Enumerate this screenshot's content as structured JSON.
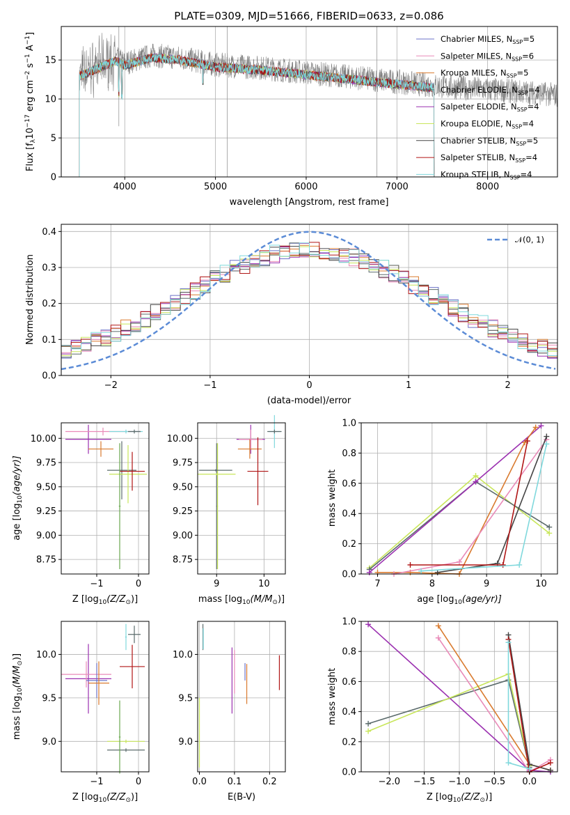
{
  "colors": {
    "chabrier_miles": "#6b72c8",
    "salpeter_miles": "#e98ab8",
    "kroupa_miles": "#d97a2e",
    "chabrier_elodie": "#5b6b6b",
    "salpeter_elodie": "#9b30b0",
    "kroupa_elodie": "#c8e65a",
    "chabrier_stelib": "#444444",
    "salpeter_stelib": "#b01515",
    "kroupa_stelib": "#7fd8dc",
    "normal": "#5b8bd6",
    "green": "#6aa84f",
    "grey_spec": "#808080"
  },
  "chart_data": [
    {
      "id": "spectrum",
      "type": "line",
      "title": "PLATE=0309, MJD=51666, FIBERID=0633, z=0.086",
      "xlabel": "wavelength [Angstrom, rest frame]",
      "ylabel_main": "Flux [f",
      "ylabel_sub": "λ",
      "ylabel_rest": "10",
      "ylabel_e1": "−17",
      "ylabel_r2": " erg cm",
      "ylabel_e2": "−2",
      "ylabel_r3": " s",
      "ylabel_e3": "−1",
      "ylabel_r4": " A",
      "ylabel_e4": "−1",
      "ylabel_end": "]",
      "xlim": [
        3300,
        8770
      ],
      "ylim": [
        0,
        19.3
      ],
      "xticks": [
        4000,
        5000,
        6000,
        7000,
        8000
      ],
      "yticks": [
        0,
        5,
        10,
        15
      ],
      "legend_position": "top-right",
      "legend": [
        {
          "text": "Chabrier MILES, N",
          "sub": "SSP",
          "tail": "=5",
          "color_key": "chabrier_miles"
        },
        {
          "text": "Salpeter MILES, N",
          "sub": "SSP",
          "tail": "=6",
          "color_key": "salpeter_miles"
        },
        {
          "text": "Kroupa MILES, N",
          "sub": "SSP",
          "tail": "=5",
          "color_key": "kroupa_miles"
        },
        {
          "text": "Chabrier ELODIE, N",
          "sub": "SSP",
          "tail": "=4",
          "color_key": "chabrier_elodie"
        },
        {
          "text": "Salpeter ELODIE, N",
          "sub": "SSP",
          "tail": "=4",
          "color_key": "salpeter_elodie"
        },
        {
          "text": "Kroupa ELODIE, N",
          "sub": "SSP",
          "tail": "=4",
          "color_key": "kroupa_elodie"
        },
        {
          "text": "Chabrier STELIB, N",
          "sub": "SSP",
          "tail": "=5",
          "color_key": "chabrier_stelib"
        },
        {
          "text": "Salpeter STELIB, N",
          "sub": "SSP",
          "tail": "=4",
          "color_key": "salpeter_stelib"
        },
        {
          "text": "Kroupa STELIB, N",
          "sub": "SSP",
          "tail": "=4",
          "color_key": "kroupa_stelib"
        }
      ],
      "data_continuum": [
        [
          3500,
          13.2
        ],
        [
          3700,
          14.2
        ],
        [
          3900,
          15.2
        ],
        [
          4000,
          14.6
        ],
        [
          4300,
          15.6
        ],
        [
          4600,
          15.3
        ],
        [
          5000,
          14.4
        ],
        [
          5500,
          14.0
        ],
        [
          6000,
          13.4
        ],
        [
          6500,
          12.8
        ],
        [
          7000,
          12.2
        ],
        [
          7500,
          11.6
        ],
        [
          8000,
          11.2
        ],
        [
          8500,
          10.8
        ],
        [
          8770,
          10.5
        ]
      ],
      "model_range": [
        3500,
        7410
      ]
    },
    {
      "id": "residuals",
      "type": "line",
      "xlabel": "(data-model)/error",
      "ylabel": "Normed distribution",
      "xlim": [
        -2.5,
        2.5
      ],
      "ylim": [
        0,
        0.42
      ],
      "xticks": [
        -2,
        -1,
        0,
        1,
        2
      ],
      "yticks": [
        0.0,
        0.1,
        0.2,
        0.3,
        0.4
      ],
      "legend_position": "top-right",
      "legend_label": "𝒩(0, 1)",
      "normal_curve": {
        "mean": 0,
        "sigma": 1
      }
    },
    {
      "id": "age_vs_Z",
      "type": "scatter",
      "xlabel_main": "Z [log",
      "xlabel_sub": "10",
      "xlabel_rest": "(Z/Z",
      "xlabel_sub2": "⊙",
      "xlabel_end": ")]",
      "ylabel_main": "age  [log",
      "ylabel_sub": "10",
      "ylabel_rest": "(age/yr)]",
      "xlim": [
        -1.85,
        0.25
      ],
      "ylim": [
        8.6,
        10.16
      ],
      "xticks": [
        -1,
        0
      ],
      "yticks": [
        8.75,
        9.0,
        9.25,
        9.5,
        9.75,
        10.0
      ],
      "points": [
        {
          "x": -1.2,
          "y": 9.99,
          "xerr": 0.55,
          "yerr": 0.15,
          "c": "salpeter_elodie"
        },
        {
          "x": -0.85,
          "y": 10.07,
          "xerr": 0.9,
          "yerr": 0.04,
          "c": "salpeter_miles"
        },
        {
          "x": -0.3,
          "y": 10.07,
          "xerr": 0.4,
          "yerr": 0.02,
          "c": "kroupa_stelib"
        },
        {
          "x": -0.1,
          "y": 10.07,
          "xerr": 0.15,
          "yerr": 0.02,
          "c": "chabrier_elodie"
        },
        {
          "x": -0.9,
          "y": 9.89,
          "xerr": 0.3,
          "yerr": 0.08,
          "c": "kroupa_miles"
        },
        {
          "x": -0.4,
          "y": 9.67,
          "xerr": 0.35,
          "yerr": 0.3,
          "c": "chabrier_elodie"
        },
        {
          "x": -0.25,
          "y": 9.63,
          "xerr": 0.45,
          "yerr": 0.3,
          "c": "kroupa_elodie"
        },
        {
          "x": -0.15,
          "y": 9.66,
          "xerr": 0.3,
          "yerr": 0.2,
          "c": "salpeter_stelib"
        },
        {
          "x": -0.45,
          "y": 9.3,
          "xerr": 0.02,
          "yerr": 0.65,
          "c": "green"
        }
      ]
    },
    {
      "id": "age_vs_mass",
      "type": "scatter",
      "xlabel_main": "mass [log",
      "xlabel_sub": "10",
      "xlabel_rest": "(M/M",
      "xlabel_sub2": "⊙",
      "xlabel_end": ")]",
      "xlim": [
        8.6,
        10.45
      ],
      "ylim": [
        8.6,
        10.16
      ],
      "xticks": [
        9,
        10
      ],
      "yticks": [
        8.75,
        9.0,
        9.25,
        9.5,
        9.75,
        10.0
      ],
      "points": [
        {
          "x": 9.0,
          "y": 9.3,
          "xerr": 0.01,
          "yerr": 0.65,
          "c": "chabrier_elodie"
        },
        {
          "x": 9.02,
          "y": 9.3,
          "xerr": 0.01,
          "yerr": 0.65,
          "c": "kroupa_elodie"
        },
        {
          "x": 8.98,
          "y": 9.67,
          "xerr": 0.35,
          "yerr": 0.01,
          "c": "chabrier_elodie"
        },
        {
          "x": 9.0,
          "y": 9.63,
          "xerr": 0.4,
          "yerr": 0.01,
          "c": "kroupa_elodie"
        },
        {
          "x": 9.72,
          "y": 9.99,
          "xerr": 0.3,
          "yerr": 0.15,
          "c": "salpeter_elodie"
        },
        {
          "x": 9.72,
          "y": 9.99,
          "xerr": 0.25,
          "yerr": 0.1,
          "c": "salpeter_miles"
        },
        {
          "x": 9.7,
          "y": 9.89,
          "xerr": 0.25,
          "yerr": 0.1,
          "c": "kroupa_miles"
        },
        {
          "x": 9.87,
          "y": 9.66,
          "xerr": 0.22,
          "yerr": 0.35,
          "c": "salpeter_stelib"
        },
        {
          "x": 10.22,
          "y": 10.07,
          "xerr": 0.12,
          "yerr": 0.17,
          "c": "kroupa_stelib"
        },
        {
          "x": 10.22,
          "y": 10.07,
          "xerr": 0.15,
          "yerr": 0.02,
          "c": "chabrier_elodie"
        }
      ]
    },
    {
      "id": "weight_vs_age",
      "type": "line",
      "xlabel_main": "age  [log",
      "xlabel_sub": "10",
      "xlabel_rest": "(age/yr)]",
      "ylabel": "mass weight",
      "xlim": [
        6.7,
        10.3
      ],
      "ylim": [
        0,
        1.0
      ],
      "xticks": [
        7,
        8,
        9,
        10
      ],
      "yticks": [
        0.0,
        0.2,
        0.4,
        0.6,
        0.8,
        1.0
      ],
      "series": [
        {
          "c": "kroupa_elodie",
          "x": [
            6.85,
            8.8,
            10.15
          ],
          "y": [
            0.04,
            0.65,
            0.27
          ]
        },
        {
          "c": "chabrier_elodie",
          "x": [
            6.85,
            8.8,
            10.15
          ],
          "y": [
            0.03,
            0.61,
            0.31
          ]
        },
        {
          "c": "salpeter_elodie",
          "x": [
            6.85,
            8.8,
            10.0
          ],
          "y": [
            0.01,
            0.61,
            0.98
          ]
        },
        {
          "c": "kroupa_miles",
          "x": [
            7.0,
            7.6,
            8.5,
            9.7,
            9.9
          ],
          "y": [
            0.01,
            0.01,
            0.0,
            0.87,
            0.97
          ]
        },
        {
          "c": "salpeter_miles",
          "x": [
            7.3,
            8.5,
            10.1
          ],
          "y": [
            0.0,
            0.08,
            0.89
          ]
        },
        {
          "c": "chabrier_stelib",
          "x": [
            8.1,
            9.2,
            10.1
          ],
          "y": [
            0.01,
            0.07,
            0.91
          ]
        },
        {
          "c": "salpeter_stelib",
          "x": [
            7.6,
            9.3,
            9.75
          ],
          "y": [
            0.06,
            0.06,
            0.88
          ]
        },
        {
          "c": "kroupa_stelib",
          "x": [
            7.8,
            9.6,
            10.1
          ],
          "y": [
            0.02,
            0.06,
            0.86
          ]
        }
      ]
    },
    {
      "id": "mass_vs_Z",
      "type": "scatter",
      "xlabel_main": "Z [log",
      "xlabel_sub": "10",
      "xlabel_rest": "(Z/Z",
      "xlabel_sub2": "⊙",
      "xlabel_end": ")]",
      "ylabel_main": "mass [log",
      "ylabel_sub": "10",
      "ylabel_rest": "(M/M",
      "ylabel_sub2": "⊙",
      "ylabel_end": ")]",
      "xlim": [
        -1.85,
        0.25
      ],
      "ylim": [
        8.65,
        10.38
      ],
      "xticks": [
        -1,
        0
      ],
      "yticks": [
        9.0,
        9.5,
        10.0
      ],
      "points": [
        {
          "x": -1.2,
          "y": 9.72,
          "xerr": 0.55,
          "yerr": 0.4,
          "c": "salpeter_elodie"
        },
        {
          "x": -1.25,
          "y": 9.77,
          "xerr": 0.6,
          "yerr": 0.15,
          "c": "salpeter_miles"
        },
        {
          "x": -1.0,
          "y": 9.7,
          "xerr": 0.25,
          "yerr": 0.2,
          "c": "chabrier_miles"
        },
        {
          "x": -0.95,
          "y": 9.67,
          "xerr": 0.25,
          "yerr": 0.25,
          "c": "kroupa_miles"
        },
        {
          "x": -0.15,
          "y": 9.86,
          "xerr": 0.3,
          "yerr": 0.25,
          "c": "salpeter_stelib"
        },
        {
          "x": -0.1,
          "y": 10.23,
          "xerr": 0.15,
          "yerr": 0.1,
          "c": "chabrier_elodie"
        },
        {
          "x": -0.3,
          "y": 10.2,
          "xerr": 0.02,
          "yerr": 0.15,
          "c": "kroupa_stelib"
        },
        {
          "x": -0.3,
          "y": 9.0,
          "xerr": 0.45,
          "yerr": 0.02,
          "c": "kroupa_elodie"
        },
        {
          "x": -0.3,
          "y": 8.9,
          "xerr": 0.45,
          "yerr": 0.02,
          "c": "chabrier_elodie"
        },
        {
          "x": -0.45,
          "y": 9.05,
          "xerr": 0.02,
          "yerr": 0.42,
          "c": "green"
        }
      ]
    },
    {
      "id": "mass_vs_ebv",
      "type": "scatter",
      "xlabel": "E(B-V)",
      "xlim": [
        -0.005,
        0.245
      ],
      "ylim": [
        8.65,
        10.38
      ],
      "xticks": [
        0.0,
        0.1,
        0.2
      ],
      "yticks": [
        9.0,
        9.5,
        10.0
      ],
      "points": [
        {
          "x": 0.01,
          "y": 10.2,
          "yerr": 0.15,
          "c": "chabrier_elodie"
        },
        {
          "x": 0.011,
          "y": 10.18,
          "yerr": 0.12,
          "c": "kroupa_stelib"
        },
        {
          "x": 0.0,
          "y": 9.1,
          "yerr": 0.4,
          "c": "kroupa_elodie"
        },
        {
          "x": 0.093,
          "y": 9.7,
          "yerr": 0.38,
          "c": "salpeter_elodie"
        },
        {
          "x": 0.1,
          "y": 9.8,
          "yerr": 0.25,
          "c": "salpeter_miles"
        },
        {
          "x": 0.13,
          "y": 9.8,
          "yerr": 0.1,
          "c": "chabrier_miles"
        },
        {
          "x": 0.135,
          "y": 9.66,
          "yerr": 0.23,
          "c": "kroupa_miles"
        },
        {
          "x": 0.228,
          "y": 9.79,
          "yerr": 0.2,
          "c": "salpeter_stelib"
        }
      ]
    },
    {
      "id": "weight_vs_Z",
      "type": "line",
      "xlabel_main": "Z [log",
      "xlabel_sub": "10",
      "xlabel_rest": "(Z/Z",
      "xlabel_sub2": "⊙",
      "xlabel_end": ")]",
      "ylabel": "mass weight",
      "xlim": [
        -2.4,
        0.4
      ],
      "ylim": [
        0,
        1.0
      ],
      "xticks": [
        -2.0,
        -1.5,
        -1.0,
        -0.5,
        0.0
      ],
      "xticklabels": [
        "−2.0",
        "−1.5",
        "−1.0",
        "−0.5",
        "0.0"
      ],
      "yticks": [
        0.0,
        0.2,
        0.4,
        0.6,
        0.8,
        1.0
      ],
      "series": [
        {
          "c": "salpeter_elodie",
          "x": [
            -2.3,
            0.0,
            0.3
          ],
          "y": [
            0.98,
            0.01,
            0.0
          ]
        },
        {
          "c": "chabrier_elodie",
          "x": [
            -2.3,
            -0.3,
            0.0
          ],
          "y": [
            0.32,
            0.61,
            0.03
          ]
        },
        {
          "c": "kroupa_elodie",
          "x": [
            -2.3,
            -0.3,
            0.0
          ],
          "y": [
            0.27,
            0.65,
            0.04
          ]
        },
        {
          "c": "kroupa_miles",
          "x": [
            -1.3,
            0.0,
            0.3
          ],
          "y": [
            0.97,
            0.05,
            0.01
          ]
        },
        {
          "c": "salpeter_miles",
          "x": [
            -1.3,
            0.0,
            0.3
          ],
          "y": [
            0.89,
            0.0,
            0.08
          ]
        },
        {
          "c": "chabrier_stelib",
          "x": [
            -0.3,
            0.0,
            0.3
          ],
          "y": [
            0.91,
            0.05,
            0.01
          ]
        },
        {
          "c": "salpeter_stelib",
          "x": [
            -0.3,
            0.0,
            0.3
          ],
          "y": [
            0.88,
            0.0,
            0.06
          ]
        },
        {
          "c": "kroupa_stelib",
          "x": [
            -0.3,
            -0.3,
            0.0
          ],
          "y": [
            0.86,
            0.06,
            0.02
          ]
        }
      ]
    }
  ]
}
